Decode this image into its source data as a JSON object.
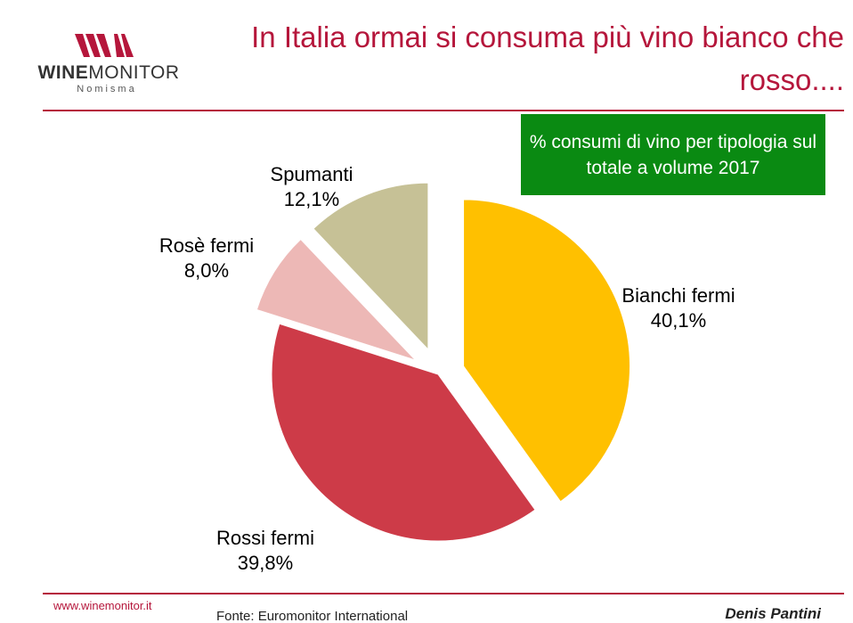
{
  "header": {
    "title": "In Italia ormai si consuma più vino bianco che rosso....",
    "logo": {
      "word_bold": "WINE",
      "word_regular": "MONITOR",
      "sub": "Nomisma"
    }
  },
  "legend_box": {
    "text": "% consumi di vino per tipologia sul totale a volume 2017"
  },
  "chart_data": {
    "type": "pie",
    "title": "% consumi di vino per tipologia sul totale a volume 2017",
    "slices": [
      {
        "label": "Bianchi fermi",
        "value": 40.1,
        "display": "40,1%",
        "color": "#FFC000",
        "exploded": true
      },
      {
        "label": "Rossi fermi",
        "value": 39.8,
        "display": "39,8%",
        "color": "#CD3B48",
        "exploded": false
      },
      {
        "label": "Rosè fermi",
        "value": 8.0,
        "display": "8,0%",
        "color": "#EDB8B6",
        "exploded": true
      },
      {
        "label": "Spumanti",
        "value": 12.1,
        "display": "12,1%",
        "color": "#C6C196",
        "exploded": true
      }
    ],
    "start_position": "12 o'clock",
    "direction": "clockwise"
  },
  "footer": {
    "url": "www.winemonitor.it",
    "source": "Fonte: Euromonitor International",
    "author": "Denis Pantini"
  }
}
